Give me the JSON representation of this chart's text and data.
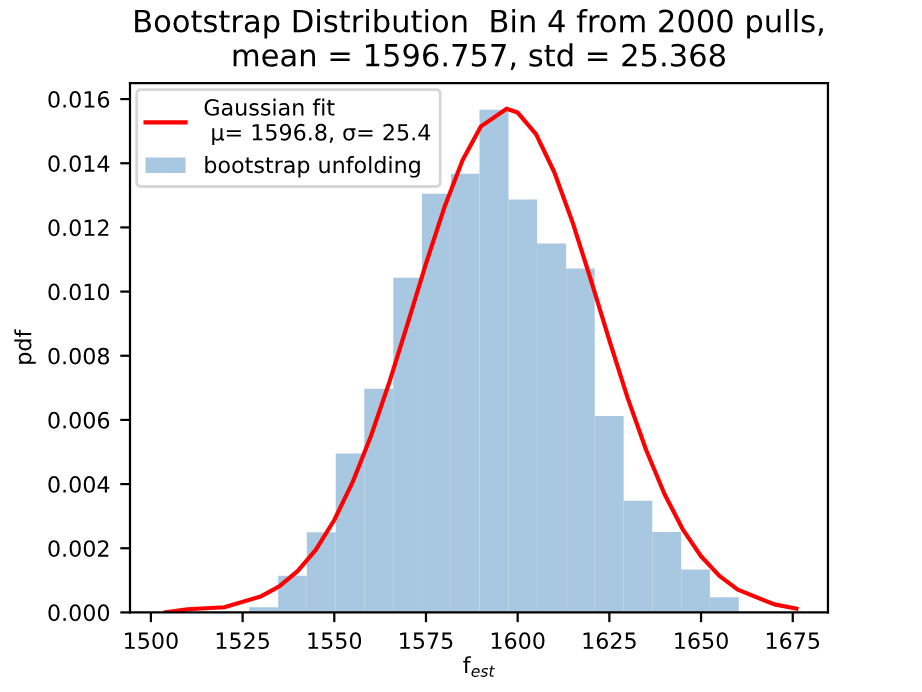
{
  "chart_data": {
    "type": "histogram",
    "title": "Bootstrap Distribution  Bin 4 from 2000 pulls,\nmean = 1596.757, std = 25.368",
    "xlabel": "f$_{est}$",
    "ylabel": "pdf",
    "bins": [
      1526.8,
      1534.7,
      1542.5,
      1550.4,
      1558.2,
      1566.1,
      1573.9,
      1581.8,
      1589.6,
      1597.5,
      1605.3,
      1613.2,
      1621.0,
      1628.9,
      1636.7,
      1644.6,
      1652.4,
      1660.3
    ],
    "series": [
      {
        "name": "bootstrap unfolding",
        "color": "#a7c8e0",
        "values": [
          0.00016,
          0.00114,
          0.0025,
          0.00495,
          0.00697,
          0.01043,
          0.01305,
          0.01367,
          0.01567,
          0.01287,
          0.0115,
          0.01072,
          0.00612,
          0.00348,
          0.00251,
          0.00134,
          0.00047
        ]
      },
      {
        "type": "line",
        "name": "Gaussian fit\n μ= 1596.8, σ= 25.4",
        "color": "#ff0000",
        "x": [
          1504,
          1510,
          1520,
          1530,
          1535,
          1540,
          1545,
          1550,
          1555,
          1560,
          1565,
          1570,
          1575,
          1580,
          1585,
          1590,
          1597,
          1600,
          1605,
          1610,
          1615,
          1620,
          1625,
          1630,
          1635,
          1640,
          1645,
          1650,
          1655,
          1660,
          1670,
          1676
        ],
        "values": [
          0.0,
          0.0001,
          0.00016,
          0.0005,
          0.00081,
          0.00129,
          0.00196,
          0.00288,
          0.00406,
          0.0055,
          0.00717,
          0.009,
          0.01087,
          0.01262,
          0.0141,
          0.01515,
          0.0157,
          0.01558,
          0.01491,
          0.01372,
          0.01215,
          0.01035,
          0.00848,
          0.00668,
          0.00507,
          0.0037,
          0.00259,
          0.00175,
          0.00114,
          0.00071,
          0.00025,
          0.00012
        ]
      }
    ],
    "xlim": [
      1494.3,
      1684.6
    ],
    "xticks": [
      1500,
      1525,
      1550,
      1575,
      1600,
      1625,
      1650,
      1675
    ],
    "ylim": [
      0,
      0.0165
    ],
    "yticks": [
      {
        "value": 0,
        "label": "0.000"
      },
      0.002,
      0.004,
      0.006,
      0.008,
      {
        "value": 0.01,
        "label": "0.010"
      },
      0.012,
      0.014,
      0.016
    ],
    "grid": false,
    "legend": "top left"
  }
}
